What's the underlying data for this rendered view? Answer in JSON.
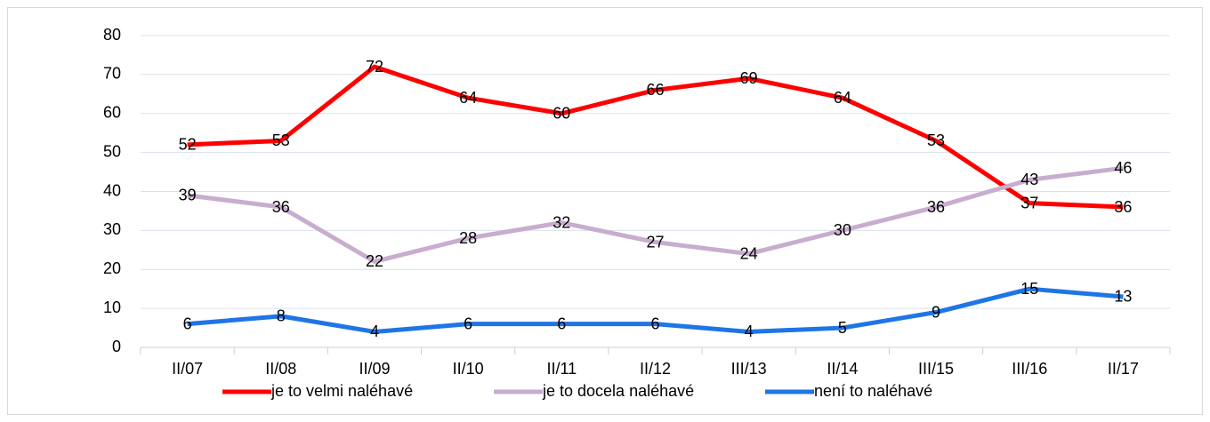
{
  "chart_data": {
    "type": "line",
    "categories": [
      "II/07",
      "II/08",
      "II/09",
      "II/10",
      "II/11",
      "II/12",
      "III/13",
      "II/14",
      "III/15",
      "III/16",
      "II/17"
    ],
    "series": [
      {
        "name": "je to velmi naléhavé",
        "color": "#ff0000",
        "values": [
          52,
          53,
          72,
          64,
          60,
          66,
          69,
          64,
          53,
          37,
          36
        ]
      },
      {
        "name": "je to docela naléhavé",
        "color": "#c8adcf",
        "values": [
          39,
          36,
          22,
          28,
          32,
          27,
          24,
          30,
          36,
          43,
          46
        ]
      },
      {
        "name": "není to naléhavé",
        "color": "#1f75e6",
        "values": [
          6,
          8,
          4,
          6,
          6,
          6,
          4,
          5,
          9,
          15,
          13
        ]
      }
    ],
    "ylim": [
      0,
      80
    ],
    "yticks": [
      0,
      10,
      20,
      30,
      40,
      50,
      60,
      70,
      80
    ],
    "grid": true,
    "legend": "bottom"
  }
}
